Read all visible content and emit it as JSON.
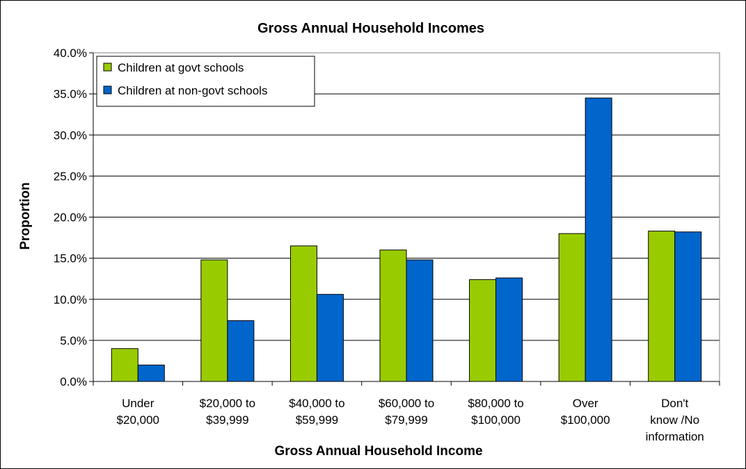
{
  "colors": {
    "govt": "#99CC00",
    "nongovt": "#0066CC"
  },
  "chart_data": {
    "type": "bar",
    "title": "Gross Annual Household Incomes",
    "xlabel": "Gross Annual Household Income",
    "ylabel": "Proportion",
    "ylim": [
      0,
      40
    ],
    "yticks": [
      "0.0%",
      "5.0%",
      "10.0%",
      "15.0%",
      "20.0%",
      "25.0%",
      "30.0%",
      "35.0%",
      "40.0%"
    ],
    "grid": true,
    "legend_position": "top-left",
    "categories": [
      [
        "Under",
        "$20,000"
      ],
      [
        "$20,000 to",
        "$39,999"
      ],
      [
        "$40,000 to",
        "$59,999"
      ],
      [
        "$60,000 to",
        "$79,999"
      ],
      [
        "$80,000 to",
        "$100,000"
      ],
      [
        "Over",
        "$100,000"
      ],
      [
        "Don't",
        "know /No",
        "information"
      ]
    ],
    "series": [
      {
        "name": "Children at govt schools",
        "values": [
          4.0,
          14.8,
          16.5,
          16.0,
          12.4,
          18.0,
          18.3
        ]
      },
      {
        "name": "Children at non-govt schools",
        "values": [
          2.0,
          7.4,
          10.6,
          14.8,
          12.6,
          34.5,
          18.2
        ]
      }
    ]
  }
}
